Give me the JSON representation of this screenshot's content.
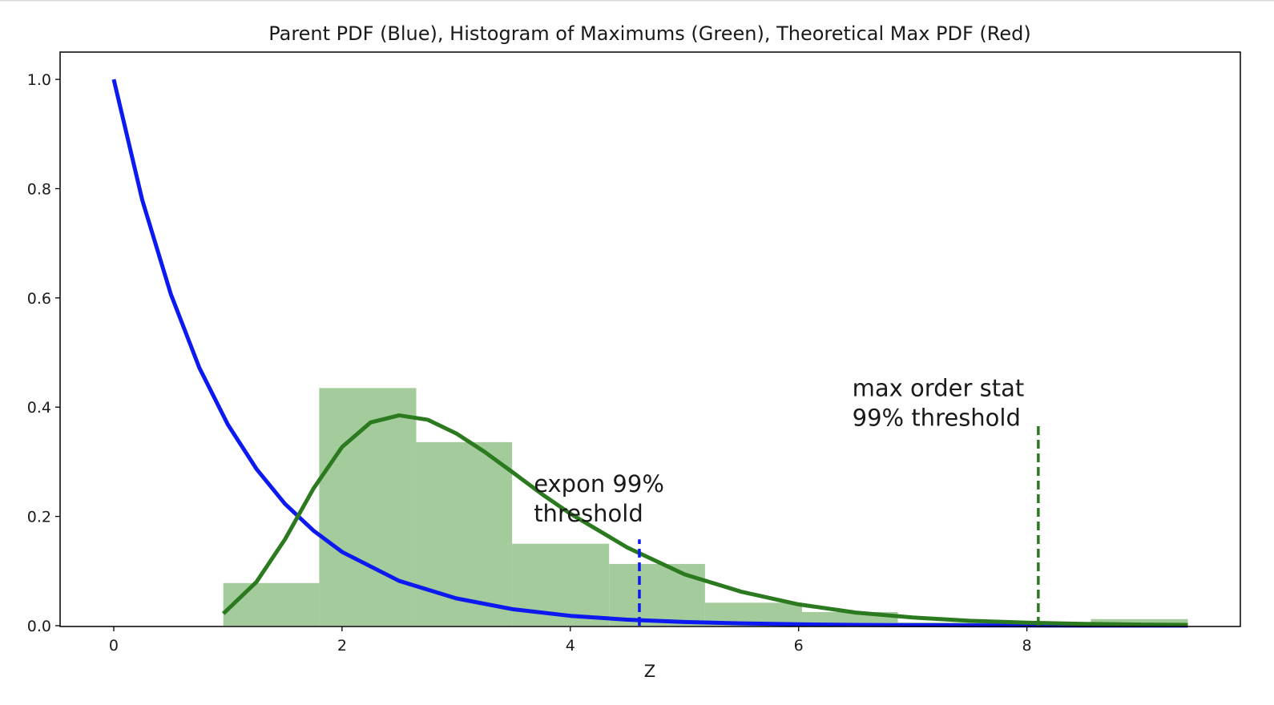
{
  "chart_data": {
    "type": "bar",
    "title": "Parent PDF (Blue), Histogram of Maximums (Green), Theoretical Max PDF (Red)",
    "xlabel": "Z",
    "ylabel": "",
    "xlim": [
      -0.47,
      9.87
    ],
    "ylim": [
      -0.0015,
      1.05
    ],
    "x_ticks": [
      0,
      2,
      4,
      6,
      8
    ],
    "x_tick_labels": [
      "0",
      "2",
      "4",
      "6",
      "8"
    ],
    "y_ticks": [
      0.0,
      0.2,
      0.4,
      0.6,
      0.8,
      1.0
    ],
    "y_tick_labels": [
      "0.0",
      "0.2",
      "0.4",
      "0.6",
      "0.8",
      "1.0"
    ],
    "grid": false,
    "colors": {
      "parent_pdf": "#0c19f0",
      "max_pdf": "#2c7a1f",
      "histogram": "#a4cb9c",
      "blue_threshold": "#0c19f0",
      "green_threshold": "#2c7a1f"
    },
    "histogram": {
      "bins": [
        {
          "x0": 0.96,
          "x1": 1.8,
          "value": 0.078
        },
        {
          "x0": 1.8,
          "x1": 2.65,
          "value": 0.435
        },
        {
          "x0": 2.65,
          "x1": 3.49,
          "value": 0.336
        },
        {
          "x0": 3.49,
          "x1": 4.34,
          "value": 0.15
        },
        {
          "x0": 4.34,
          "x1": 5.18,
          "value": 0.113
        },
        {
          "x0": 5.18,
          "x1": 6.03,
          "value": 0.042
        },
        {
          "x0": 6.03,
          "x1": 6.87,
          "value": 0.025
        },
        {
          "x0": 6.87,
          "x1": 7.72,
          "value": 0.006
        },
        {
          "x0": 7.72,
          "x1": 8.56,
          "value": 0.006
        },
        {
          "x0": 8.56,
          "x1": 9.41,
          "value": 0.012
        }
      ]
    },
    "series": [
      {
        "curve": "parent_pdf",
        "x": [
          0.0,
          0.25,
          0.5,
          0.75,
          1.0,
          1.25,
          1.5,
          1.75,
          2.0,
          2.5,
          3.0,
          3.5,
          4.0,
          4.5,
          5.0,
          5.5,
          6.0,
          6.5,
          7.0,
          7.5,
          8.0,
          8.5,
          9.0,
          9.41
        ],
        "y": [
          1.0,
          0.779,
          0.607,
          0.472,
          0.368,
          0.287,
          0.223,
          0.174,
          0.135,
          0.082,
          0.05,
          0.03,
          0.018,
          0.011,
          0.0067,
          0.0041,
          0.0025,
          0.0015,
          0.0009,
          0.0006,
          0.0003,
          0.0002,
          0.0001,
          0.0001
        ]
      },
      {
        "curve": "max_pdf",
        "x": [
          0.96,
          1.25,
          1.5,
          1.75,
          2.0,
          2.25,
          2.5,
          2.75,
          3.0,
          3.25,
          3.5,
          3.75,
          4.0,
          4.5,
          5.0,
          5.5,
          6.0,
          6.5,
          7.0,
          7.5,
          8.0,
          8.5,
          9.0,
          9.41
        ],
        "y": [
          0.022,
          0.08,
          0.158,
          0.251,
          0.327,
          0.372,
          0.385,
          0.377,
          0.352,
          0.318,
          0.28,
          0.241,
          0.205,
          0.143,
          0.094,
          0.062,
          0.039,
          0.024,
          0.015,
          0.009,
          0.0055,
          0.0033,
          0.002,
          0.0014
        ]
      }
    ],
    "threshold_lines": [
      {
        "x": 4.605,
        "y_top": 0.158,
        "color_key": "blue_threshold"
      },
      {
        "x": 8.1,
        "y_top": 0.368,
        "color_key": "green_threshold"
      }
    ],
    "annotations": [
      {
        "id": "expon",
        "x": 3.68,
        "y": 0.245,
        "lines": [
          "expon 99%",
          "threshold"
        ]
      },
      {
        "id": "maxstat",
        "x": 6.47,
        "y": 0.42,
        "lines": [
          "max order stat",
          "99% threshold"
        ]
      }
    ]
  }
}
